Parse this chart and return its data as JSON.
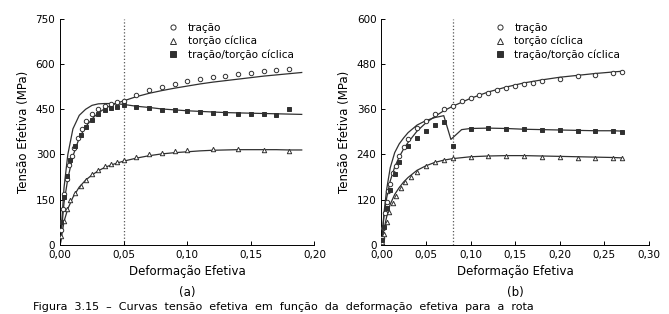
{
  "panel_a": {
    "title": "(a)",
    "xlabel": "Deformação Efetiva",
    "ylabel": "Tensão Efetiva (MPa)",
    "xlim": [
      0,
      0.2
    ],
    "ylim": [
      0,
      750
    ],
    "xticks": [
      0.0,
      0.05,
      0.1,
      0.15,
      0.2
    ],
    "yticks": [
      0,
      150,
      300,
      450,
      600,
      750
    ],
    "xticklabels": [
      "0,00",
      "0,05",
      "0,10",
      "0,15",
      "0,20"
    ],
    "yticklabels": [
      "0",
      "150",
      "300",
      "450",
      "600",
      "750"
    ],
    "vline": 0.05,
    "tracao_scatter_x": [
      0.001,
      0.002,
      0.003,
      0.005,
      0.007,
      0.009,
      0.011,
      0.014,
      0.017,
      0.02,
      0.025,
      0.03,
      0.035,
      0.04,
      0.045,
      0.05,
      0.06,
      0.07,
      0.08,
      0.09,
      0.1,
      0.11,
      0.12,
      0.13,
      0.14,
      0.15,
      0.16,
      0.17,
      0.18
    ],
    "tracao_scatter_y": [
      50,
      120,
      170,
      220,
      265,
      295,
      320,
      355,
      385,
      410,
      435,
      450,
      460,
      468,
      473,
      478,
      498,
      513,
      523,
      533,
      543,
      550,
      557,
      561,
      567,
      571,
      576,
      580,
      585
    ],
    "tracao_line_x": [
      0.0,
      0.003,
      0.006,
      0.01,
      0.015,
      0.02,
      0.025,
      0.03,
      0.035,
      0.04,
      0.045,
      0.05,
      0.06,
      0.07,
      0.08,
      0.09,
      0.1,
      0.11,
      0.12,
      0.13,
      0.14,
      0.15,
      0.16,
      0.17,
      0.18,
      0.19
    ],
    "tracao_line_y": [
      0,
      140,
      220,
      295,
      355,
      392,
      418,
      438,
      452,
      463,
      471,
      478,
      492,
      503,
      512,
      520,
      527,
      534,
      540,
      545,
      550,
      555,
      560,
      564,
      568,
      572
    ],
    "torcao_scatter_x": [
      0.001,
      0.003,
      0.005,
      0.008,
      0.012,
      0.016,
      0.02,
      0.025,
      0.03,
      0.035,
      0.04,
      0.045,
      0.05,
      0.06,
      0.07,
      0.08,
      0.09,
      0.1,
      0.12,
      0.14,
      0.16,
      0.18
    ],
    "torcao_scatter_y": [
      30,
      80,
      118,
      148,
      172,
      196,
      216,
      236,
      250,
      261,
      270,
      276,
      283,
      293,
      300,
      306,
      310,
      314,
      318,
      319,
      316,
      312
    ],
    "torcao_line_x": [
      0.0,
      0.003,
      0.006,
      0.01,
      0.015,
      0.02,
      0.025,
      0.03,
      0.035,
      0.04,
      0.045,
      0.05,
      0.06,
      0.07,
      0.08,
      0.09,
      0.1,
      0.11,
      0.12,
      0.13,
      0.14,
      0.15,
      0.16,
      0.17,
      0.18,
      0.19
    ],
    "torcao_line_y": [
      0,
      78,
      120,
      158,
      192,
      215,
      232,
      246,
      257,
      265,
      272,
      278,
      288,
      296,
      302,
      306,
      309,
      312,
      314,
      315,
      316,
      316,
      316,
      316,
      315,
      315
    ],
    "trtoc_scatter_x": [
      0.001,
      0.003,
      0.005,
      0.008,
      0.012,
      0.016,
      0.02,
      0.025,
      0.03,
      0.035,
      0.04,
      0.045,
      0.05,
      0.06,
      0.07,
      0.08,
      0.09,
      0.1,
      0.11,
      0.12,
      0.13,
      0.14,
      0.15,
      0.16,
      0.17,
      0.18
    ],
    "trtoc_scatter_y": [
      75,
      160,
      228,
      282,
      328,
      365,
      390,
      415,
      435,
      446,
      454,
      459,
      463,
      458,
      454,
      449,
      446,
      444,
      441,
      439,
      437,
      435,
      434,
      433,
      430,
      450
    ],
    "trtoc_line_x": [
      0.0,
      0.003,
      0.006,
      0.01,
      0.015,
      0.02,
      0.025,
      0.03,
      0.035,
      0.04,
      0.045,
      0.05,
      0.06,
      0.07,
      0.08,
      0.09,
      0.1,
      0.11,
      0.12,
      0.13,
      0.14,
      0.15,
      0.16,
      0.17,
      0.18,
      0.19
    ],
    "trtoc_line_y": [
      0,
      190,
      300,
      385,
      430,
      450,
      463,
      468,
      469,
      469,
      468,
      466,
      460,
      456,
      451,
      448,
      445,
      443,
      441,
      439,
      438,
      437,
      436,
      435,
      434,
      433
    ]
  },
  "panel_b": {
    "title": "(b)",
    "xlabel": "Deformação Efetiva",
    "ylabel": "Tensão Efetiva (MPa)",
    "xlim": [
      0,
      0.3
    ],
    "ylim": [
      0,
      600
    ],
    "xticks": [
      0.0,
      0.05,
      0.1,
      0.15,
      0.2,
      0.25,
      0.3
    ],
    "yticks": [
      0,
      120,
      240,
      360,
      480,
      600
    ],
    "xticklabels": [
      "0,00",
      "0,05",
      "0,10",
      "0,15",
      "0,20",
      "0,25",
      "0,30"
    ],
    "yticklabels": [
      "0",
      "120",
      "240",
      "360",
      "480",
      "600"
    ],
    "vline": 0.08,
    "tracao_scatter_x": [
      0.001,
      0.002,
      0.004,
      0.006,
      0.008,
      0.01,
      0.013,
      0.016,
      0.02,
      0.025,
      0.03,
      0.04,
      0.05,
      0.06,
      0.07,
      0.08,
      0.09,
      0.1,
      0.11,
      0.12,
      0.13,
      0.14,
      0.15,
      0.16,
      0.17,
      0.18,
      0.2,
      0.22,
      0.24,
      0.26,
      0.27
    ],
    "tracao_scatter_y": [
      18,
      45,
      85,
      115,
      142,
      162,
      190,
      210,
      236,
      260,
      280,
      310,
      330,
      347,
      360,
      370,
      381,
      389,
      397,
      404,
      411,
      416,
      421,
      426,
      430,
      434,
      441,
      447,
      452,
      457,
      460
    ],
    "tracao_line_x": [
      0.0,
      0.003,
      0.006,
      0.01,
      0.015,
      0.02,
      0.025,
      0.03,
      0.04,
      0.05,
      0.06,
      0.07,
      0.08,
      0.1,
      0.12,
      0.14,
      0.16,
      0.18,
      0.2,
      0.22,
      0.24,
      0.26,
      0.27
    ],
    "tracao_line_y": [
      0,
      78,
      125,
      170,
      207,
      233,
      255,
      272,
      302,
      324,
      341,
      356,
      368,
      389,
      406,
      419,
      430,
      438,
      445,
      450,
      455,
      459,
      461
    ],
    "torcao_scatter_x": [
      0.001,
      0.003,
      0.006,
      0.009,
      0.013,
      0.017,
      0.022,
      0.027,
      0.033,
      0.04,
      0.05,
      0.06,
      0.07,
      0.08,
      0.1,
      0.12,
      0.14,
      0.16,
      0.18,
      0.2,
      0.22,
      0.24,
      0.26,
      0.27
    ],
    "torcao_scatter_y": [
      8,
      30,
      62,
      88,
      112,
      130,
      150,
      166,
      180,
      194,
      210,
      220,
      226,
      230,
      234,
      236,
      236,
      235,
      234,
      233,
      232,
      231,
      230,
      230
    ],
    "torcao_line_x": [
      0.0,
      0.003,
      0.006,
      0.01,
      0.015,
      0.02,
      0.025,
      0.03,
      0.04,
      0.05,
      0.06,
      0.07,
      0.08,
      0.1,
      0.12,
      0.14,
      0.16,
      0.18,
      0.2,
      0.22,
      0.24,
      0.26,
      0.27
    ],
    "torcao_line_y": [
      0,
      42,
      75,
      108,
      134,
      152,
      167,
      179,
      198,
      210,
      219,
      225,
      229,
      234,
      236,
      237,
      237,
      236,
      235,
      234,
      233,
      232,
      231
    ],
    "trtoc_scatter_x": [
      0.001,
      0.003,
      0.006,
      0.01,
      0.015,
      0.02,
      0.03,
      0.04,
      0.05,
      0.06,
      0.07,
      0.08,
      0.1,
      0.12,
      0.14,
      0.16,
      0.18,
      0.2,
      0.22,
      0.24,
      0.26,
      0.27
    ],
    "trtoc_scatter_y": [
      12,
      48,
      98,
      145,
      188,
      220,
      262,
      285,
      302,
      317,
      326,
      262,
      308,
      310,
      307,
      307,
      305,
      304,
      303,
      302,
      302,
      301
    ],
    "trtoc_line_x": [
      0.0,
      0.003,
      0.006,
      0.01,
      0.015,
      0.02,
      0.025,
      0.03,
      0.04,
      0.05,
      0.06,
      0.07,
      0.078,
      0.09,
      0.1,
      0.12,
      0.14,
      0.16,
      0.18,
      0.2,
      0.22,
      0.24,
      0.26,
      0.27
    ],
    "trtoc_line_y": [
      0,
      85,
      148,
      205,
      245,
      268,
      284,
      298,
      318,
      330,
      338,
      343,
      280,
      306,
      309,
      310,
      309,
      307,
      306,
      305,
      304,
      303,
      303,
      302
    ]
  },
  "caption": "Figura  3.15  –  Curvas  tensão  efetiva  em  função  da  deformação  efetiva  para  a  rota",
  "legend_labels": [
    "tração",
    "torção cíclica",
    "tração/torção cíclica"
  ],
  "line_color": "#303030",
  "scatter_color": "#303030",
  "font_size_tick": 7.5,
  "font_size_label": 8.5,
  "font_size_legend": 7.5,
  "font_size_caption": 8.0
}
